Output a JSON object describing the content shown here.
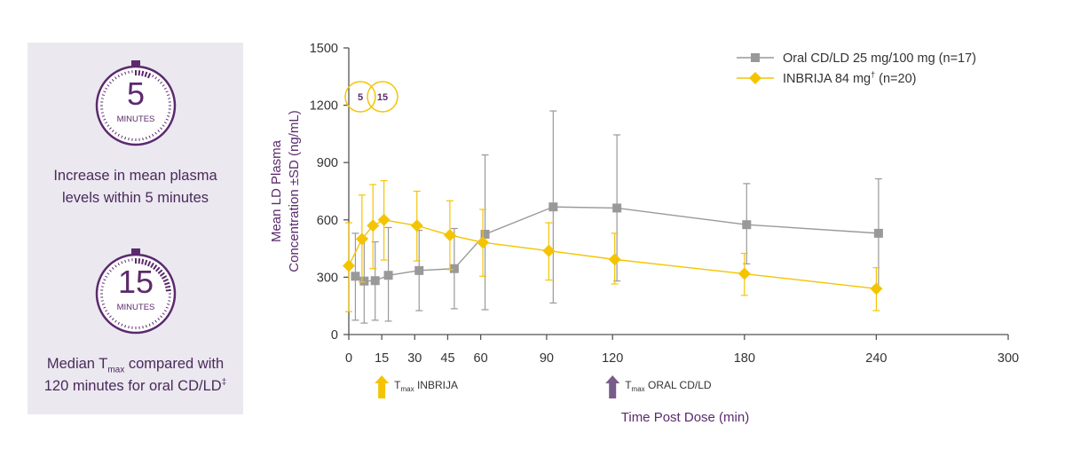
{
  "stats": {
    "timer1": {
      "number": "5",
      "unit": "MINUTES",
      "caption_line1": "Increase in mean plasma",
      "caption_line2": "levels within 5 minutes"
    },
    "timer2": {
      "number": "15",
      "unit": "MINUTES",
      "caption_line1_pre": "Median T",
      "caption_line1_sub": "max",
      "caption_line1_post": " compared with",
      "caption_line2": "120 minutes for oral CD/LD",
      "caption_line2_sup": "‡"
    }
  },
  "colors": {
    "purple": "#5b2a6e",
    "panel": "#ebe8f0",
    "oral": "#999999",
    "inbrija": "#f5c400",
    "axis": "#555555",
    "axis_label": "#5b2a6e"
  },
  "chart_data": {
    "type": "line",
    "ylabel_line1": "Mean LD Plasma",
    "ylabel_line2": "Concentration ±SD (ng/mL)",
    "xlabel": "Time Post Dose (min)",
    "xlim": [
      0,
      300
    ],
    "ylim": [
      0,
      1500
    ],
    "xticks": [
      0,
      15,
      30,
      45,
      60,
      90,
      120,
      180,
      240,
      300
    ],
    "yticks": [
      0,
      300,
      600,
      900,
      1200,
      1500
    ],
    "series": [
      {
        "name": "Oral CD/LD 25 mg/100 mg (n=17)",
        "marker": "square",
        "color": "#999999",
        "points": [
          {
            "x": 3,
            "y": 305,
            "lo": 75,
            "hi": 530
          },
          {
            "x": 7,
            "y": 280,
            "lo": 60,
            "hi": 505
          },
          {
            "x": 12,
            "y": 282,
            "lo": 75,
            "hi": 485
          },
          {
            "x": 18,
            "y": 310,
            "lo": 70,
            "hi": 560
          },
          {
            "x": 32,
            "y": 335,
            "lo": 125,
            "hi": 545
          },
          {
            "x": 48,
            "y": 345,
            "lo": 135,
            "hi": 555
          },
          {
            "x": 62,
            "y": 525,
            "lo": 130,
            "hi": 940
          },
          {
            "x": 93,
            "y": 668,
            "lo": 165,
            "hi": 1170
          },
          {
            "x": 122,
            "y": 662,
            "lo": 280,
            "hi": 1045
          },
          {
            "x": 181,
            "y": 575,
            "lo": 370,
            "hi": 790
          },
          {
            "x": 241,
            "y": 530,
            "lo": 240,
            "hi": 815
          }
        ]
      },
      {
        "name": "INBRIJA 84 mg",
        "name_sup": "†",
        "name_post": " (n=20)",
        "marker": "diamond",
        "color": "#f5c400",
        "points": [
          {
            "x": 0,
            "y": 360,
            "lo": 120,
            "hi": 585
          },
          {
            "x": 6,
            "y": 500,
            "lo": 275,
            "hi": 730
          },
          {
            "x": 11,
            "y": 570,
            "lo": 345,
            "hi": 785
          },
          {
            "x": 16,
            "y": 600,
            "lo": 390,
            "hi": 805
          },
          {
            "x": 31,
            "y": 570,
            "lo": 385,
            "hi": 750
          },
          {
            "x": 46,
            "y": 520,
            "lo": 340,
            "hi": 700
          },
          {
            "x": 61,
            "y": 482,
            "lo": 305,
            "hi": 655
          },
          {
            "x": 91,
            "y": 438,
            "lo": 285,
            "hi": 585
          },
          {
            "x": 121,
            "y": 393,
            "lo": 265,
            "hi": 530
          },
          {
            "x": 180,
            "y": 318,
            "lo": 205,
            "hi": 425
          },
          {
            "x": 240,
            "y": 240,
            "lo": 125,
            "hi": 350
          }
        ]
      }
    ],
    "time_markers": [
      {
        "x": 5,
        "label": "5"
      },
      {
        "x": 15,
        "label": "15"
      }
    ],
    "tmax_labels": [
      {
        "x": 15,
        "t": "T",
        "sub": "max",
        "label": " INBRIJA",
        "color": "#f5c400"
      },
      {
        "x": 120,
        "t": "T",
        "sub": "max",
        "label": " ORAL CD/LD",
        "color": "#7a5c8a"
      }
    ]
  }
}
